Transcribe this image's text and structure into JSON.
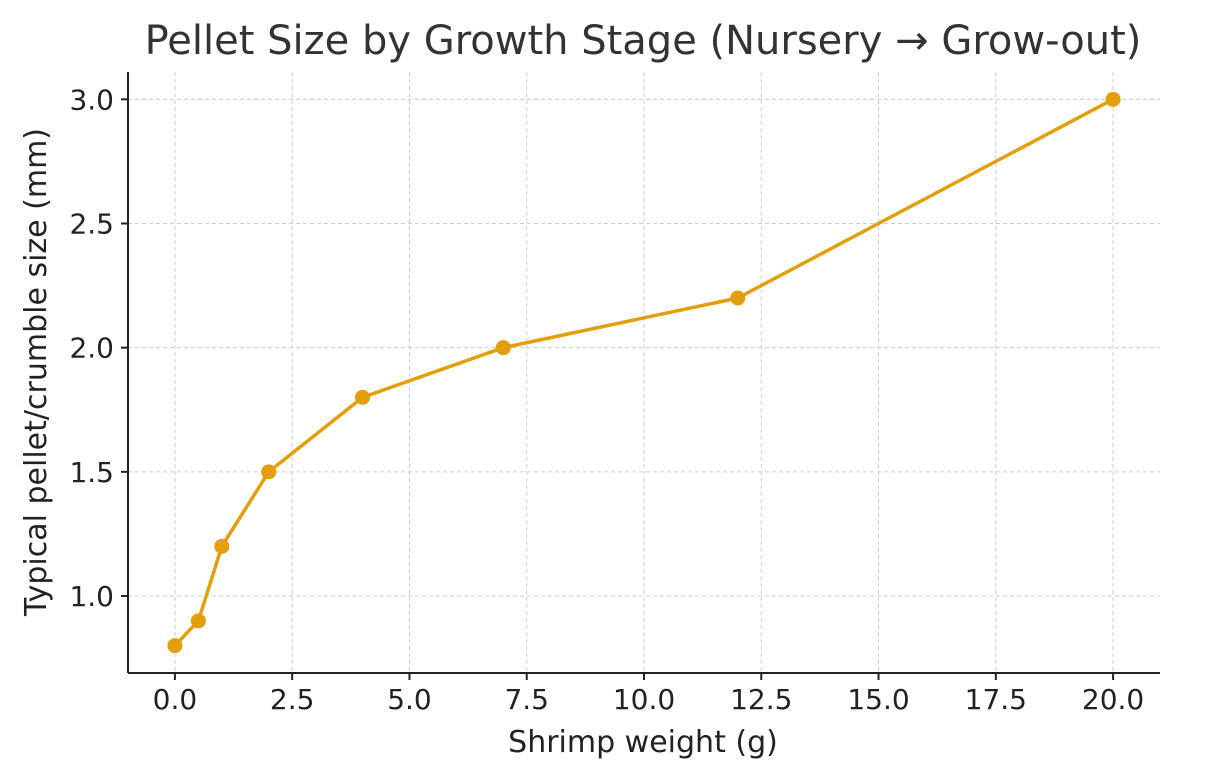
{
  "chart_data": {
    "type": "line",
    "title": "Pellet Size by Growth Stage (Nursery → Grow-out)",
    "xlabel": "Shrimp weight (g)",
    "ylabel": "Typical pellet/crumble size (mm)",
    "xlim": [
      -1.0,
      21.0
    ],
    "ylim": [
      0.69,
      3.11
    ],
    "x_ticks": [
      0.0,
      2.5,
      5.0,
      7.5,
      10.0,
      12.5,
      15.0,
      17.5,
      20.0
    ],
    "x_tick_labels": [
      "0.0",
      "2.5",
      "5.0",
      "7.5",
      "10.0",
      "12.5",
      "15.0",
      "17.5",
      "20.0"
    ],
    "y_ticks": [
      1.0,
      1.5,
      2.0,
      2.5,
      3.0
    ],
    "y_tick_labels": [
      "1.0",
      "1.5",
      "2.0",
      "2.5",
      "3.0"
    ],
    "grid": true,
    "series": [
      {
        "color": "#e39f0b",
        "x": [
          0.0,
          0.5,
          1.0,
          2.0,
          4.0,
          7.0,
          12.0,
          20.0
        ],
        "y": [
          0.8,
          0.9,
          1.2,
          1.5,
          1.8,
          2.0,
          2.2,
          3.0
        ]
      }
    ]
  }
}
